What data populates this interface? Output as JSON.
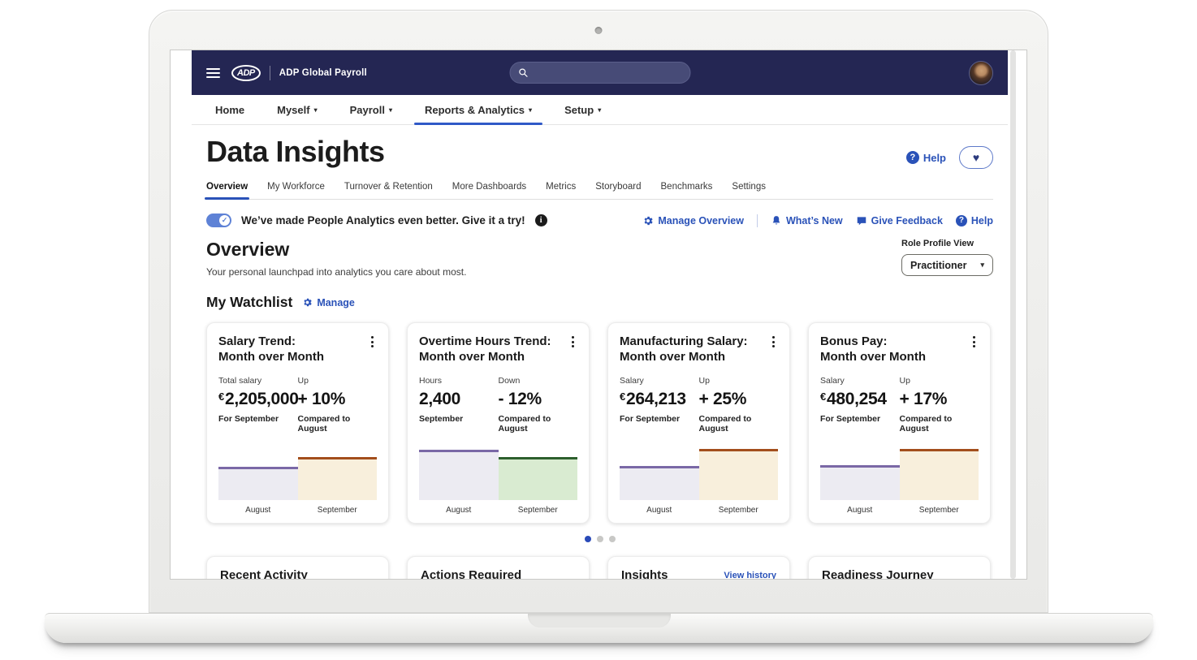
{
  "colors": {
    "navbar_bg": "#242653",
    "accent_blue": "#2a52b8",
    "active_underline": "#3059c7",
    "bar_august_fill": "#ecebf2",
    "bar_august_top": "#7a68a6",
    "bar_up_fill": "#f8efdc",
    "bar_up_top": "#a34e1c",
    "bar_down_fill": "#d9ebd1",
    "bar_down_top": "#2d5f2d"
  },
  "topbar": {
    "logo_text": "ADP",
    "app_name": "ADP Global Payroll"
  },
  "nav": {
    "items": [
      {
        "label": "Home"
      },
      {
        "label": "Myself"
      },
      {
        "label": "Payroll"
      },
      {
        "label": "Reports & Analytics"
      },
      {
        "label": "Setup"
      }
    ],
    "active": "Reports & Analytics"
  },
  "header": {
    "title": "Data Insights",
    "help_label": "Help"
  },
  "tabs": {
    "items": [
      "Overview",
      "My Workforce",
      "Turnover & Retention",
      "More Dashboards",
      "Metrics",
      "Storyboard",
      "Benchmarks",
      "Settings"
    ],
    "active": "Overview"
  },
  "banner": {
    "message": "We’ve made People Analytics even better. Give it a try!",
    "manage_overview": "Manage Overview",
    "whats_new": "What’s New",
    "give_feedback": "Give Feedback",
    "help": "Help"
  },
  "overview": {
    "heading": "Overview",
    "subtitle": "Your personal launchpad into analytics you care about most.",
    "role_profile_label": "Role Profile View",
    "role_profile_value": "Practitioner"
  },
  "watchlist": {
    "heading": "My Watchlist",
    "manage_label": "Manage",
    "cards": [
      {
        "title_line1": "Salary Trend:",
        "title_line2": "Month over Month",
        "primary": {
          "label": "Total salary",
          "currency": "€",
          "value": "2,205,000",
          "caption": "For September"
        },
        "change": {
          "label": "Up",
          "value": "+ 10%",
          "caption": "Compared to August"
        },
        "chart": {
          "type": "bar",
          "categories": [
            "August",
            "September"
          ],
          "trend": "up",
          "august_h": 41,
          "september_h": 53
        }
      },
      {
        "title_line1": "Overtime Hours Trend:",
        "title_line2": "Month over Month",
        "primary": {
          "label": "Hours",
          "currency": "",
          "value": "2,400",
          "caption": "September"
        },
        "change": {
          "label": "Down",
          "value": "- 12%",
          "caption": "Compared to August"
        },
        "chart": {
          "type": "bar",
          "categories": [
            "August",
            "September"
          ],
          "trend": "down",
          "august_h": 62,
          "september_h": 53
        }
      },
      {
        "title_line1": "Manufacturing Salary:",
        "title_line2": "Month over Month",
        "primary": {
          "label": "Salary",
          "currency": "€",
          "value": "264,213",
          "caption": "For September"
        },
        "change": {
          "label": "Up",
          "value": "+ 25%",
          "caption": "Compared to August"
        },
        "chart": {
          "type": "bar",
          "categories": [
            "August",
            "September"
          ],
          "trend": "up",
          "august_h": 42,
          "september_h": 63
        }
      },
      {
        "title_line1": "Bonus Pay:",
        "title_line2": "Month over Month",
        "primary": {
          "label": "Salary",
          "currency": "€",
          "value": "480,254",
          "caption": "For September"
        },
        "change": {
          "label": "Up",
          "value": "+ 17%",
          "caption": "Compared to August"
        },
        "chart": {
          "type": "bar",
          "categories": [
            "August",
            "September"
          ],
          "trend": "up",
          "august_h": 43,
          "september_h": 63
        }
      }
    ]
  },
  "pagination": {
    "total_dots": 3,
    "active_dot": 1
  },
  "bottom_cards": [
    {
      "title": "Recent Activity"
    },
    {
      "title": "Actions Required"
    },
    {
      "title": "Insights",
      "link": "View history"
    },
    {
      "title": "Readiness Journey"
    }
  ]
}
